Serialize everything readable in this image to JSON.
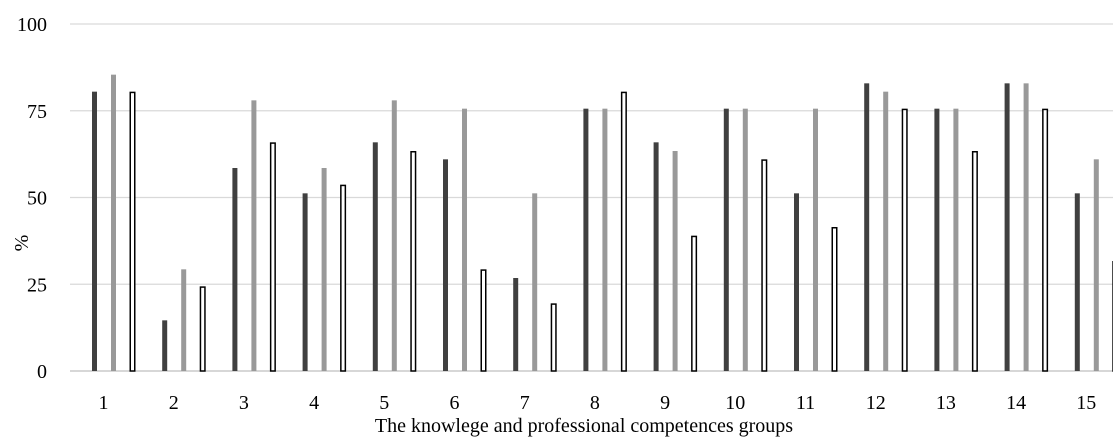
{
  "chart_data": {
    "type": "bar",
    "title": "",
    "xlabel": "The knowlege and professional competences groups",
    "ylabel": "%",
    "ylim": [
      0,
      100
    ],
    "yticks": [
      0,
      25,
      50,
      75,
      100
    ],
    "grid": true,
    "legend": "none",
    "categories": [
      "1",
      "2",
      "3",
      "4",
      "5",
      "6",
      "7",
      "8",
      "9",
      "10",
      "11",
      "12",
      "13",
      "14",
      "15"
    ],
    "series": [
      {
        "color": "#404040",
        "fill": "solid",
        "values": [
          80.5,
          14.6,
          58.5,
          51.2,
          65.9,
          61.0,
          26.8,
          75.6,
          65.9,
          75.6,
          51.2,
          82.9,
          75.6,
          82.9,
          51.2
        ]
      },
      {
        "color": "#999999",
        "fill": "solid",
        "values": [
          85.4,
          29.3,
          78.0,
          58.5,
          78.0,
          75.6,
          51.2,
          75.6,
          63.4,
          75.6,
          75.6,
          80.5,
          75.6,
          82.9,
          61.0
        ]
      },
      {
        "color": "#000000",
        "fill": "outline",
        "values": [
          80.5,
          24.4,
          65.9,
          53.7,
          63.4,
          29.3,
          19.5,
          80.5,
          39.0,
          61.0,
          41.5,
          75.6,
          63.4,
          75.6,
          31.7
        ]
      }
    ]
  }
}
